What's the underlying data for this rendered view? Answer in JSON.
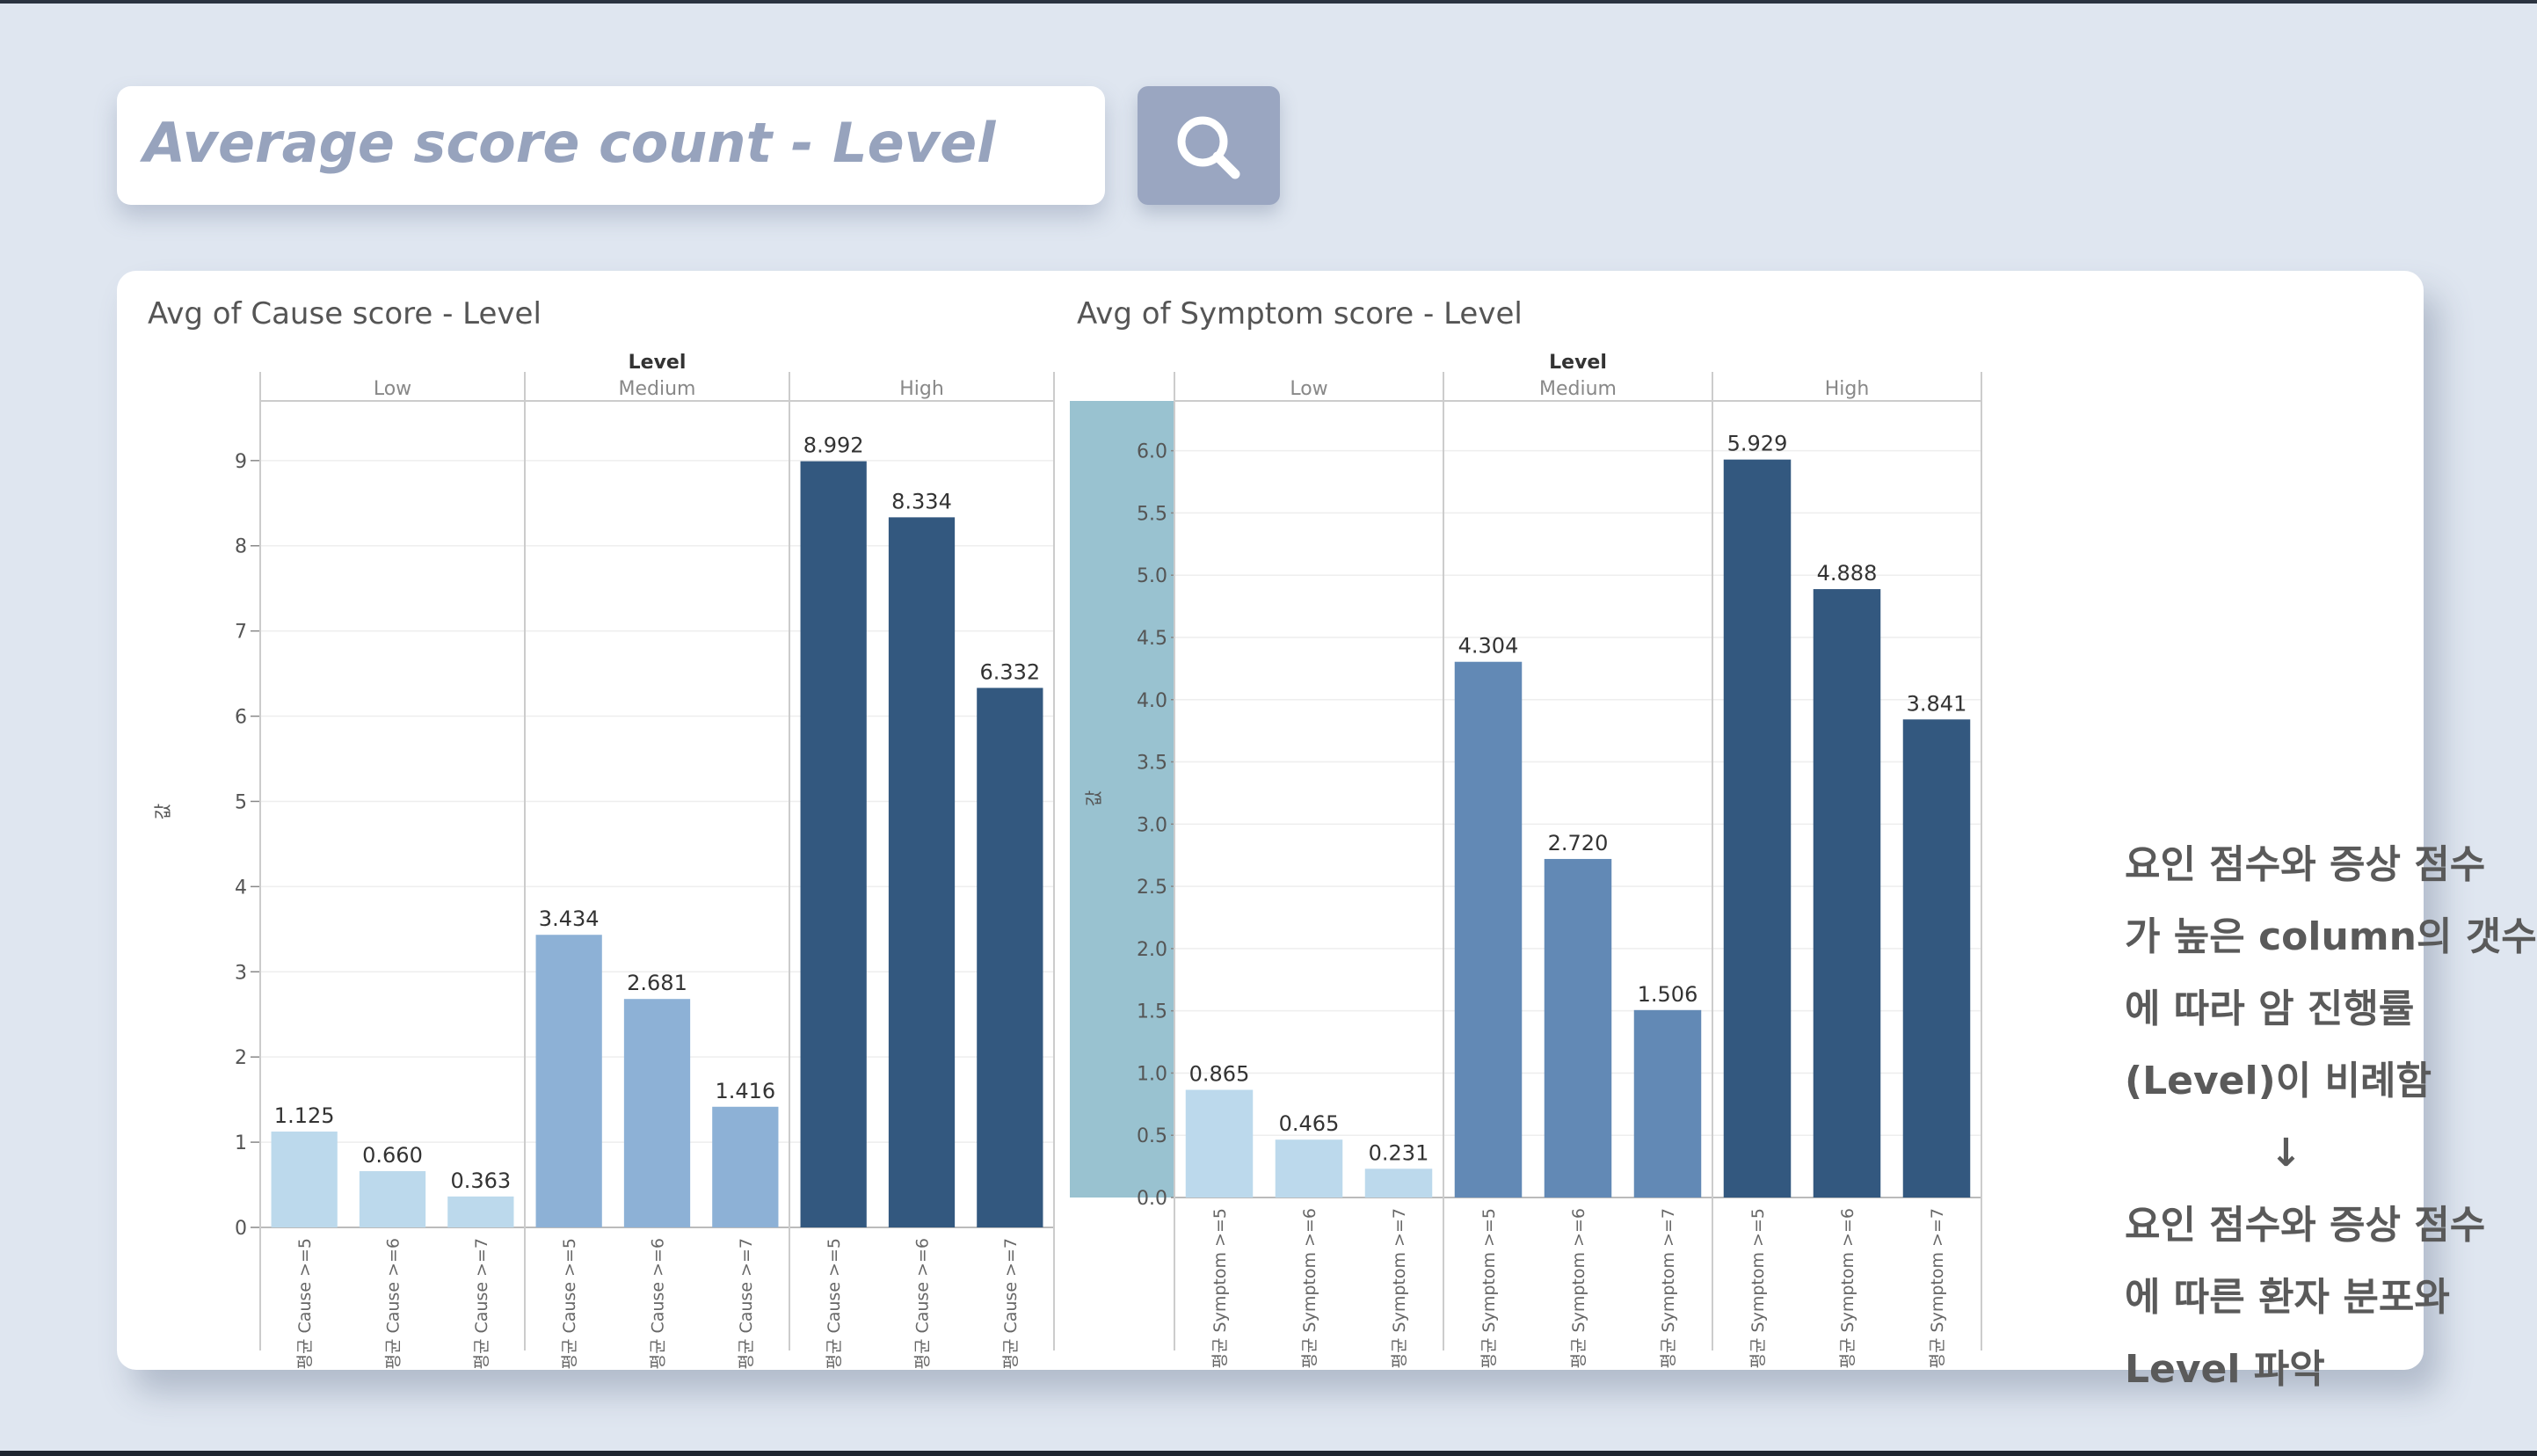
{
  "search": {
    "label": "Average score count - Level",
    "icon": "search-icon"
  },
  "colors": {
    "page_bg": "#dfe6f0",
    "low": "#bcd9ec",
    "medium_cause": "#8db1d6",
    "medium_symptom": "#6289b5",
    "high": "#33587f",
    "axis_highlight": "#99c2d0"
  },
  "chart_data": [
    {
      "type": "bar",
      "title": "Avg of Cause score - Level",
      "header": "Level",
      "ylabel": "값",
      "groups": [
        "Low",
        "Medium",
        "High"
      ],
      "categories": [
        "평균 Cause >=5",
        "평균 Cause >=6",
        "평균 Cause >=7"
      ],
      "series": [
        {
          "name": "Low",
          "values": [
            1.125,
            0.66,
            0.363
          ]
        },
        {
          "name": "Medium",
          "values": [
            3.434,
            2.681,
            1.416
          ]
        },
        {
          "name": "High",
          "values": [
            8.992,
            8.334,
            6.332
          ]
        }
      ],
      "value_labels": [
        [
          "1.125",
          "0.660",
          "0.363"
        ],
        [
          "3.434",
          "2.681",
          "1.416"
        ],
        [
          "8.992",
          "8.334",
          "6.332"
        ]
      ],
      "ylim": [
        0,
        9.7
      ],
      "yticks": [
        0,
        1,
        2,
        3,
        4,
        5,
        6,
        7,
        8,
        9
      ],
      "ytick_labels": [
        "0",
        "1",
        "2",
        "3",
        "4",
        "5",
        "6",
        "7",
        "8",
        "9"
      ],
      "grid": true
    },
    {
      "type": "bar",
      "title": "Avg of Symptom score - Level",
      "header": "Level",
      "ylabel": "값",
      "groups": [
        "Low",
        "Medium",
        "High"
      ],
      "categories": [
        "평균 Symptom >=5",
        "평균 Symptom >=6",
        "평균 Symptom >=7"
      ],
      "series": [
        {
          "name": "Low",
          "values": [
            0.865,
            0.465,
            0.231
          ]
        },
        {
          "name": "Medium",
          "values": [
            4.304,
            2.72,
            1.506
          ]
        },
        {
          "name": "High",
          "values": [
            5.929,
            4.888,
            3.841
          ]
        }
      ],
      "value_labels": [
        [
          "0.865",
          "0.465",
          "0.231"
        ],
        [
          "4.304",
          "2.720",
          "1.506"
        ],
        [
          "5.929",
          "4.888",
          "3.841"
        ]
      ],
      "ylim": [
        0,
        6.4
      ],
      "yticks": [
        0,
        0.5,
        1,
        1.5,
        2,
        2.5,
        3,
        3.5,
        4,
        4.5,
        5,
        5.5,
        6
      ],
      "ytick_labels": [
        "0.0",
        "0.5",
        "1.0",
        "1.5",
        "2.0",
        "2.5",
        "3.0",
        "3.5",
        "4.0",
        "4.5",
        "5.0",
        "5.5",
        "6.0"
      ],
      "grid": true
    }
  ],
  "note": {
    "line1": "요인 점수와 증상 점수",
    "line2": "가 높은 column의 갯수",
    "line3": "에 따라 암 진행률",
    "line4": "(Level)이 비례함",
    "arrow": "↓",
    "line5": "요인 점수와 증상 점수",
    "line6": "에 따른 환자 분포와",
    "line7": "Level 파악"
  }
}
